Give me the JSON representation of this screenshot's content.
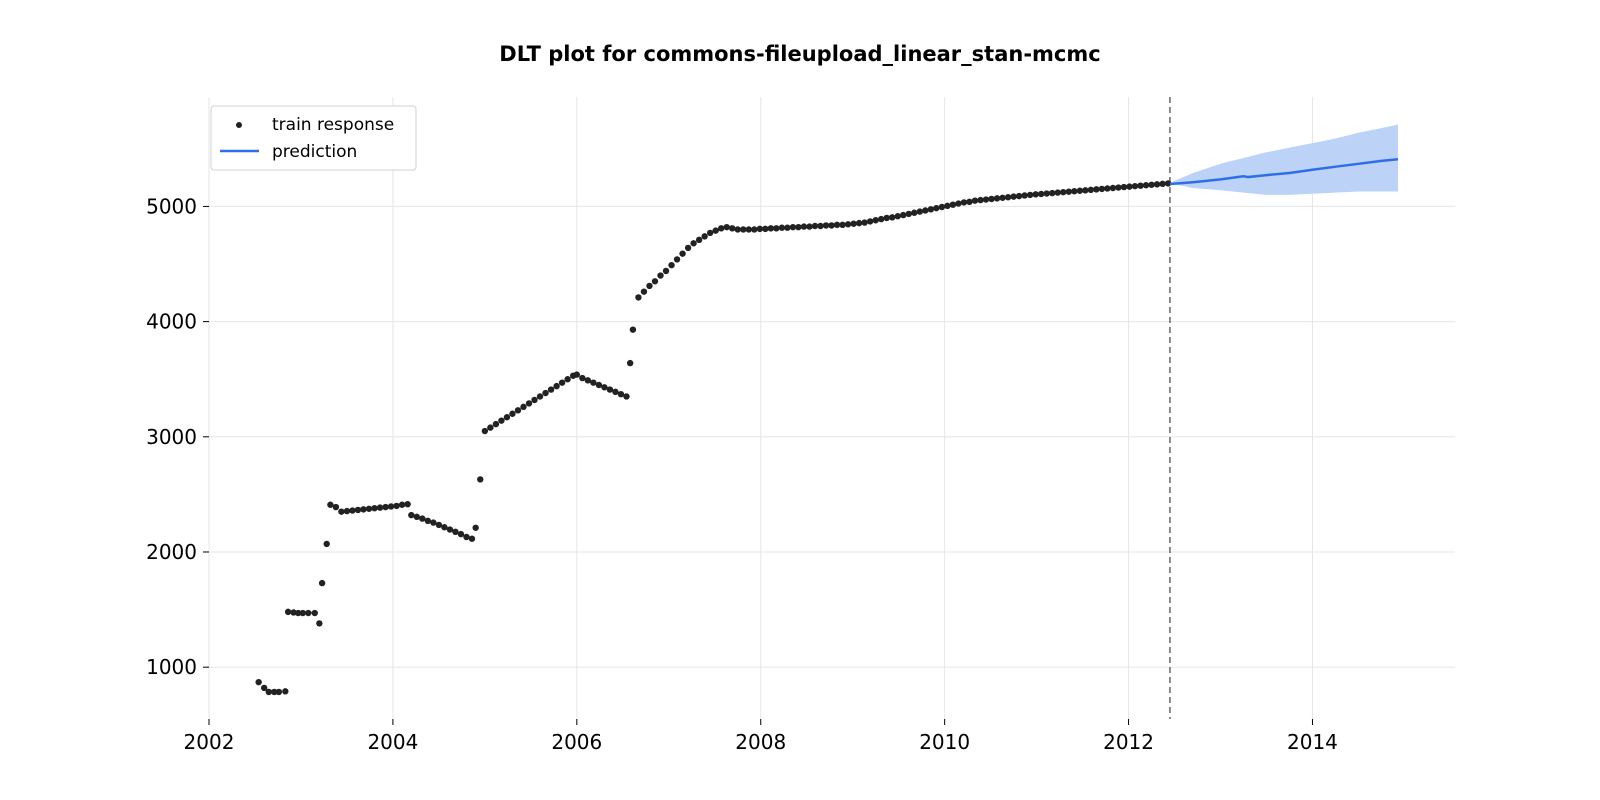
{
  "chart_data": {
    "type": "scatter",
    "title": "DLT plot for commons-fileupload_linear_stan-mcmc",
    "xlabel": "",
    "ylabel": "",
    "xlim": [
      2002.0,
      2015.55
    ],
    "ylim": [
      550,
      5950
    ],
    "x_ticks": [
      2002,
      2004,
      2006,
      2008,
      2010,
      2012,
      2014
    ],
    "y_ticks": [
      1000,
      2000,
      3000,
      4000,
      5000
    ],
    "grid": true,
    "legend_position": "top-left",
    "train_end": 2012.45,
    "colors": {
      "train": "#222222",
      "prediction": "#2f6fe4",
      "band": "#bcd2f7",
      "train_end_line": "#666666",
      "grid": "#e6e6e6"
    },
    "series": [
      {
        "name": "train response",
        "type": "scatter",
        "points": [
          [
            2002.54,
            870
          ],
          [
            2002.6,
            820
          ],
          [
            2002.65,
            785
          ],
          [
            2002.71,
            785
          ],
          [
            2002.76,
            785
          ],
          [
            2002.83,
            790
          ],
          [
            2002.86,
            1480
          ],
          [
            2002.92,
            1475
          ],
          [
            2002.97,
            1470
          ],
          [
            2003.02,
            1470
          ],
          [
            2003.08,
            1470
          ],
          [
            2003.15,
            1470
          ],
          [
            2003.2,
            1380
          ],
          [
            2003.23,
            1730
          ],
          [
            2003.28,
            2070
          ],
          [
            2003.32,
            2410
          ],
          [
            2003.38,
            2390
          ],
          [
            2003.44,
            2350
          ],
          [
            2003.5,
            2355
          ],
          [
            2003.56,
            2360
          ],
          [
            2003.62,
            2365
          ],
          [
            2003.68,
            2370
          ],
          [
            2003.74,
            2375
          ],
          [
            2003.8,
            2380
          ],
          [
            2003.86,
            2385
          ],
          [
            2003.92,
            2390
          ],
          [
            2003.98,
            2395
          ],
          [
            2004.04,
            2400
          ],
          [
            2004.1,
            2410
          ],
          [
            2004.16,
            2415
          ],
          [
            2004.2,
            2320
          ],
          [
            2004.26,
            2305
          ],
          [
            2004.32,
            2290
          ],
          [
            2004.38,
            2270
          ],
          [
            2004.44,
            2255
          ],
          [
            2004.5,
            2235
          ],
          [
            2004.56,
            2215
          ],
          [
            2004.62,
            2195
          ],
          [
            2004.68,
            2175
          ],
          [
            2004.74,
            2155
          ],
          [
            2004.8,
            2130
          ],
          [
            2004.86,
            2115
          ],
          [
            2004.9,
            2210
          ],
          [
            2004.95,
            2630
          ],
          [
            2005.0,
            3050
          ],
          [
            2005.06,
            3080
          ],
          [
            2005.12,
            3110
          ],
          [
            2005.18,
            3140
          ],
          [
            2005.24,
            3170
          ],
          [
            2005.3,
            3200
          ],
          [
            2005.36,
            3230
          ],
          [
            2005.42,
            3260
          ],
          [
            2005.48,
            3290
          ],
          [
            2005.54,
            3320
          ],
          [
            2005.6,
            3350
          ],
          [
            2005.66,
            3380
          ],
          [
            2005.72,
            3410
          ],
          [
            2005.78,
            3440
          ],
          [
            2005.84,
            3470
          ],
          [
            2005.9,
            3500
          ],
          [
            2005.96,
            3530
          ],
          [
            2006.0,
            3540
          ],
          [
            2006.06,
            3510
          ],
          [
            2006.12,
            3490
          ],
          [
            2006.18,
            3470
          ],
          [
            2006.24,
            3450
          ],
          [
            2006.3,
            3430
          ],
          [
            2006.36,
            3410
          ],
          [
            2006.42,
            3390
          ],
          [
            2006.48,
            3370
          ],
          [
            2006.54,
            3350
          ],
          [
            2006.58,
            3640
          ],
          [
            2006.61,
            3930
          ],
          [
            2006.67,
            4210
          ],
          [
            2006.73,
            4260
          ],
          [
            2006.79,
            4310
          ],
          [
            2006.85,
            4350
          ],
          [
            2006.91,
            4400
          ],
          [
            2006.97,
            4440
          ],
          [
            2007.03,
            4490
          ],
          [
            2007.09,
            4540
          ],
          [
            2007.15,
            4590
          ],
          [
            2007.21,
            4640
          ],
          [
            2007.27,
            4680
          ],
          [
            2007.33,
            4710
          ],
          [
            2007.39,
            4740
          ],
          [
            2007.45,
            4770
          ],
          [
            2007.51,
            4790
          ],
          [
            2007.57,
            4810
          ],
          [
            2007.63,
            4820
          ],
          [
            2007.69,
            4810
          ],
          [
            2007.75,
            4800
          ],
          [
            2007.81,
            4800
          ],
          [
            2007.87,
            4800
          ],
          [
            2007.93,
            4800
          ],
          [
            2007.99,
            4805
          ],
          [
            2008.05,
            4805
          ],
          [
            2008.11,
            4810
          ],
          [
            2008.17,
            4810
          ],
          [
            2008.23,
            4815
          ],
          [
            2008.29,
            4815
          ],
          [
            2008.35,
            4820
          ],
          [
            2008.41,
            4820
          ],
          [
            2008.47,
            4825
          ],
          [
            2008.53,
            4825
          ],
          [
            2008.59,
            4830
          ],
          [
            2008.65,
            4830
          ],
          [
            2008.71,
            4835
          ],
          [
            2008.77,
            4835
          ],
          [
            2008.83,
            4840
          ],
          [
            2008.89,
            4840
          ],
          [
            2008.95,
            4845
          ],
          [
            2009.01,
            4850
          ],
          [
            2009.07,
            4855
          ],
          [
            2009.13,
            4860
          ],
          [
            2009.19,
            4870
          ],
          [
            2009.25,
            4880
          ],
          [
            2009.31,
            4890
          ],
          [
            2009.37,
            4900
          ],
          [
            2009.43,
            4905
          ],
          [
            2009.49,
            4915
          ],
          [
            2009.55,
            4925
          ],
          [
            2009.61,
            4935
          ],
          [
            2009.67,
            4945
          ],
          [
            2009.73,
            4955
          ],
          [
            2009.79,
            4965
          ],
          [
            2009.85,
            4975
          ],
          [
            2009.91,
            4985
          ],
          [
            2009.97,
            4995
          ],
          [
            2010.03,
            5005
          ],
          [
            2010.09,
            5015
          ],
          [
            2010.15,
            5025
          ],
          [
            2010.21,
            5035
          ],
          [
            2010.27,
            5040
          ],
          [
            2010.33,
            5050
          ],
          [
            2010.39,
            5055
          ],
          [
            2010.45,
            5060
          ],
          [
            2010.51,
            5065
          ],
          [
            2010.57,
            5070
          ],
          [
            2010.63,
            5075
          ],
          [
            2010.69,
            5080
          ],
          [
            2010.75,
            5085
          ],
          [
            2010.81,
            5090
          ],
          [
            2010.87,
            5095
          ],
          [
            2010.93,
            5100
          ],
          [
            2010.99,
            5105
          ],
          [
            2011.05,
            5108
          ],
          [
            2011.11,
            5112
          ],
          [
            2011.17,
            5116
          ],
          [
            2011.23,
            5120
          ],
          [
            2011.29,
            5124
          ],
          [
            2011.35,
            5128
          ],
          [
            2011.41,
            5132
          ],
          [
            2011.47,
            5136
          ],
          [
            2011.53,
            5140
          ],
          [
            2011.59,
            5144
          ],
          [
            2011.65,
            5148
          ],
          [
            2011.71,
            5152
          ],
          [
            2011.77,
            5156
          ],
          [
            2011.83,
            5160
          ],
          [
            2011.89,
            5164
          ],
          [
            2011.95,
            5168
          ],
          [
            2012.01,
            5172
          ],
          [
            2012.07,
            5176
          ],
          [
            2012.13,
            5180
          ],
          [
            2012.19,
            5184
          ],
          [
            2012.25,
            5188
          ],
          [
            2012.31,
            5192
          ],
          [
            2012.37,
            5196
          ],
          [
            2012.43,
            5200
          ]
        ]
      },
      {
        "name": "prediction",
        "type": "line",
        "points": [
          [
            2012.45,
            5195
          ],
          [
            2012.7,
            5210
          ],
          [
            2013.0,
            5235
          ],
          [
            2013.25,
            5262
          ],
          [
            2013.3,
            5255
          ],
          [
            2013.5,
            5272
          ],
          [
            2013.75,
            5290
          ],
          [
            2014.0,
            5318
          ],
          [
            2014.25,
            5345
          ],
          [
            2014.5,
            5370
          ],
          [
            2014.75,
            5395
          ],
          [
            2014.93,
            5410
          ]
        ]
      },
      {
        "type": "band",
        "points": [
          [
            2012.45,
            5200,
            5205
          ],
          [
            2012.7,
            5160,
            5290
          ],
          [
            2013.0,
            5140,
            5370
          ],
          [
            2013.25,
            5120,
            5420
          ],
          [
            2013.5,
            5100,
            5470
          ],
          [
            2013.75,
            5100,
            5510
          ],
          [
            2014.0,
            5110,
            5550
          ],
          [
            2014.25,
            5120,
            5590
          ],
          [
            2014.5,
            5130,
            5640
          ],
          [
            2014.75,
            5130,
            5680
          ],
          [
            2014.93,
            5130,
            5710
          ]
        ]
      }
    ]
  }
}
